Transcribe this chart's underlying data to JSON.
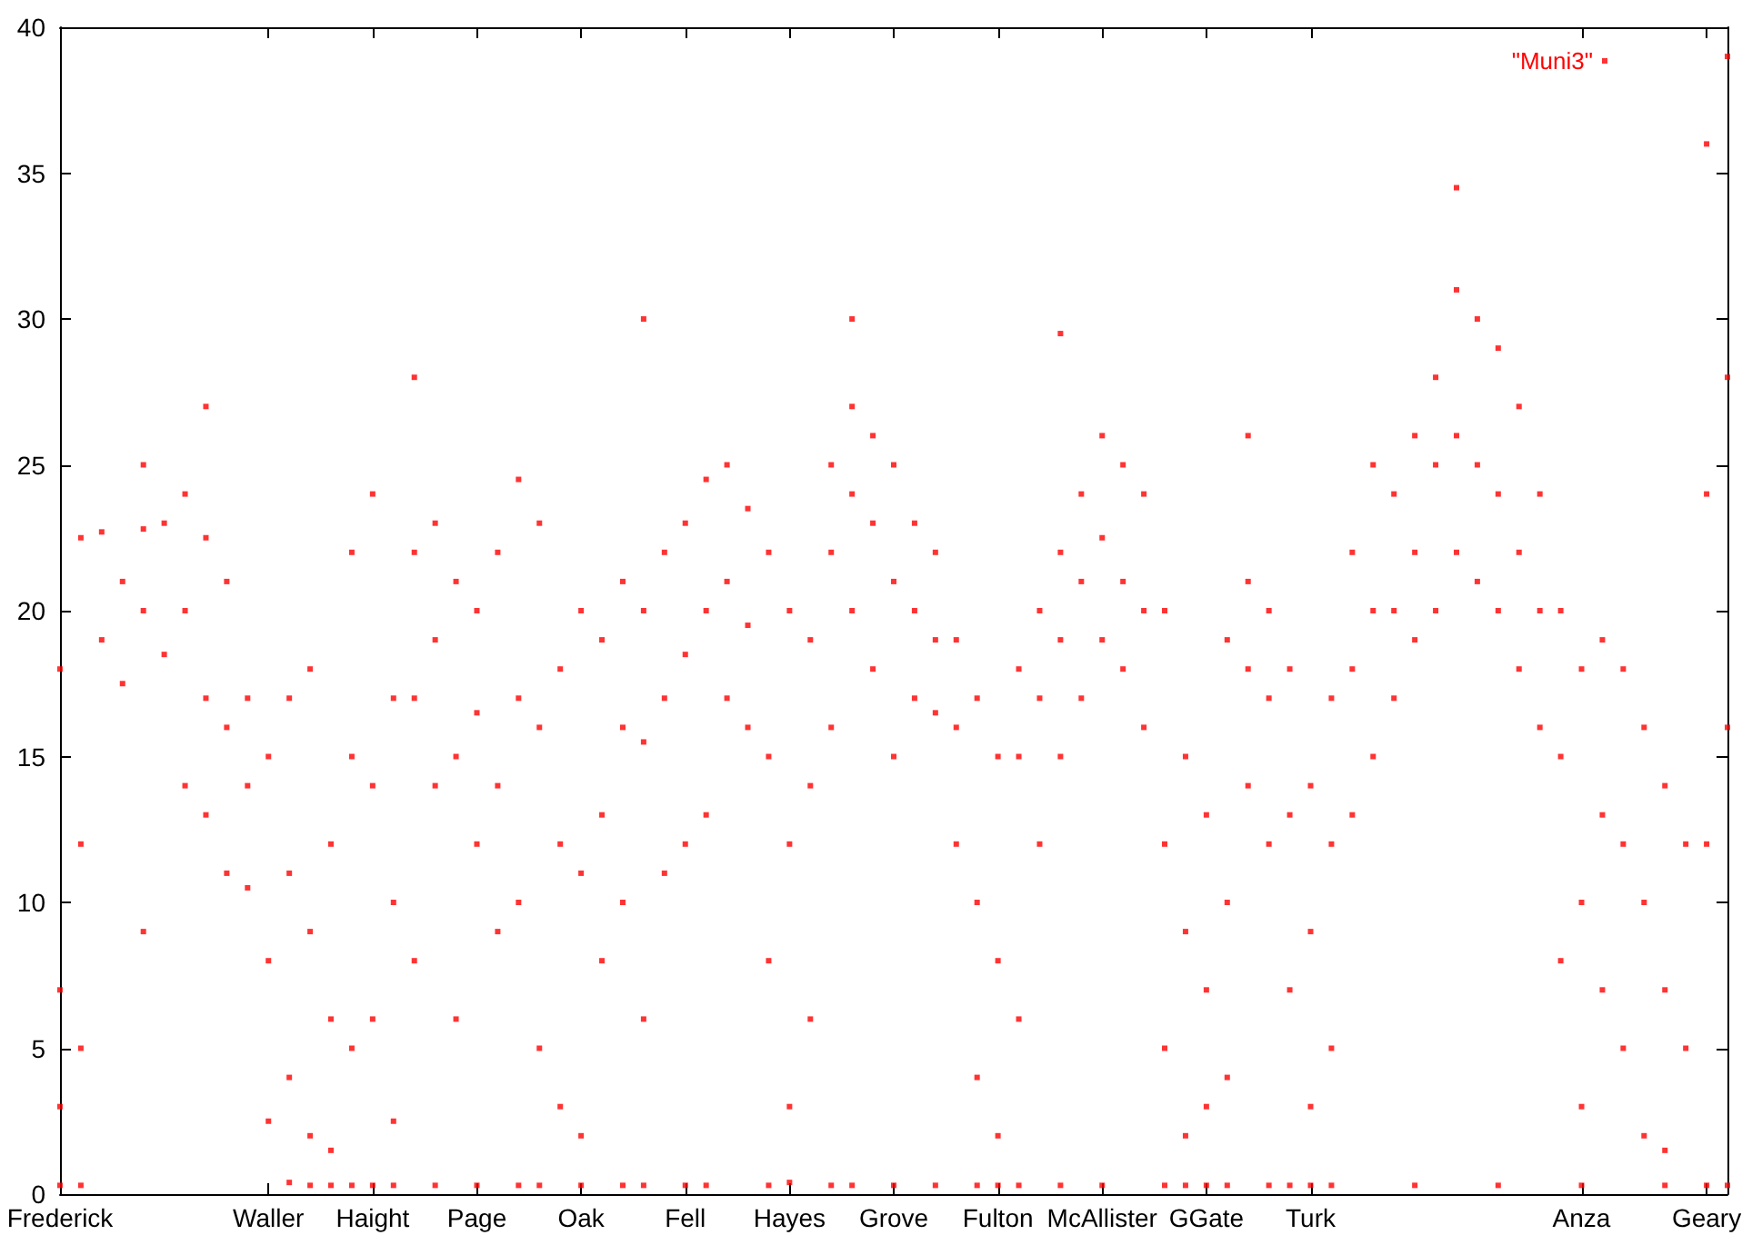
{
  "chart_data": {
    "type": "scatter",
    "marker": "square",
    "legend": "top right",
    "grid": false,
    "categories": [
      "Frederick",
      null,
      null,
      null,
      null,
      null,
      null,
      null,
      null,
      null,
      "Waller",
      null,
      null,
      null,
      null,
      "Haight",
      null,
      null,
      null,
      null,
      "Page",
      null,
      null,
      null,
      null,
      "Oak",
      null,
      null,
      null,
      null,
      "Fell",
      null,
      null,
      null,
      null,
      "Hayes",
      null,
      null,
      null,
      null,
      "Grove",
      null,
      null,
      null,
      null,
      "Fulton",
      null,
      null,
      null,
      null,
      "McAllister",
      null,
      null,
      null,
      null,
      "GGate",
      null,
      null,
      null,
      null,
      "Turk",
      null,
      null,
      null,
      null,
      null,
      null,
      null,
      null,
      null,
      null,
      null,
      null,
      "Anza",
      null,
      null,
      null,
      null,
      null,
      "Geary",
      null
    ],
    "ylim": [
      0,
      40
    ],
    "yticks": [
      0,
      5,
      10,
      15,
      20,
      25,
      30,
      35,
      40
    ],
    "series": [
      {
        "name": "\"Muni3\"",
        "color": "#ff0000",
        "values": [
          18,
          22.5,
          22.7,
          21,
          22.8,
          23,
          24,
          22.5,
          21,
          17,
          15,
          17,
          18,
          12,
          22,
          24,
          17,
          22,
          23,
          21,
          20,
          22,
          24.5,
          23,
          18,
          20,
          19,
          21,
          20,
          22,
          23,
          24.5,
          25,
          23.5,
          22,
          20,
          19,
          25,
          27,
          26,
          25,
          23,
          22,
          19,
          17,
          15,
          18,
          20,
          22,
          24,
          26,
          25,
          24,
          20,
          15,
          13,
          19,
          21,
          20,
          18,
          14,
          17,
          22,
          25,
          24,
          26,
          28,
          31,
          30,
          29,
          27,
          24,
          20,
          18,
          19,
          18,
          16,
          14,
          12,
          36,
          39
        ]
      },
      {
        "color": "#ff0000",
        "values": [
          7,
          12,
          19,
          17.5,
          20,
          18.5,
          20,
          17,
          16,
          14,
          8,
          11,
          9,
          6,
          15,
          14,
          10,
          17,
          19,
          15,
          16.5,
          14,
          17,
          16,
          12,
          11,
          13,
          16,
          15.5,
          17,
          18.5,
          20,
          21,
          19.5,
          15,
          12,
          14,
          22,
          24,
          23,
          21,
          20,
          19,
          16,
          10,
          8,
          15,
          17,
          19,
          21,
          22.5,
          21,
          20,
          12,
          9,
          7,
          10,
          18,
          17,
          13,
          9,
          12,
          18,
          20,
          20,
          22,
          25,
          26,
          25,
          24,
          22,
          20,
          15,
          10,
          13,
          12,
          10,
          7,
          5,
          24,
          28
        ]
      },
      {
        "color": "#ff0000",
        "values": [
          3,
          5,
          null,
          null,
          9,
          null,
          14,
          13,
          11,
          10.5,
          2.5,
          4,
          2,
          1.5,
          5,
          6,
          2.5,
          8,
          14,
          6,
          12,
          9,
          10,
          5,
          3,
          2,
          8,
          10,
          6,
          11,
          12,
          13,
          17,
          16,
          8,
          3,
          6,
          16,
          20,
          18,
          15,
          17,
          16.5,
          12,
          4,
          2,
          6,
          12,
          15,
          17,
          19,
          18,
          16,
          5,
          2,
          3,
          4,
          14,
          12,
          7,
          3,
          5,
          13,
          15,
          17,
          19,
          20,
          22,
          21,
          20,
          18,
          16,
          8,
          3,
          7,
          5,
          2,
          1.5,
          null,
          12,
          16
        ]
      },
      {
        "color": "#ff0000",
        "values": [
          0.3,
          0.3,
          null,
          null,
          null,
          null,
          null,
          null,
          null,
          null,
          null,
          0.4,
          0.3,
          0.3,
          0.3,
          0.3,
          0.3,
          null,
          0.3,
          null,
          0.3,
          null,
          0.3,
          0.3,
          null,
          0.3,
          null,
          0.3,
          0.3,
          null,
          0.3,
          0.3,
          null,
          null,
          0.3,
          0.4,
          null,
          0.3,
          0.3,
          null,
          0.3,
          null,
          0.3,
          null,
          0.3,
          0.3,
          0.3,
          null,
          0.3,
          null,
          0.3,
          null,
          null,
          0.3,
          0.3,
          0.3,
          0.3,
          null,
          0.3,
          0.3,
          0.3,
          0.3,
          null,
          null,
          null,
          0.3,
          null,
          null,
          null,
          0.3,
          null,
          null,
          null,
          0.3,
          null,
          null,
          null,
          0.3,
          null,
          0.3,
          0.3
        ]
      },
      {
        "color": "#ff0000",
        "values": [
          null,
          null,
          null,
          null,
          25,
          null,
          null,
          27,
          null,
          null,
          null,
          null,
          null,
          null,
          null,
          null,
          null,
          28,
          null,
          null,
          null,
          null,
          null,
          null,
          null,
          null,
          null,
          null,
          30,
          null,
          null,
          null,
          null,
          null,
          null,
          null,
          null,
          null,
          30,
          null,
          null,
          null,
          null,
          null,
          null,
          null,
          null,
          null,
          29.5,
          null,
          null,
          null,
          null,
          null,
          null,
          null,
          null,
          26,
          null,
          null,
          null,
          null,
          null,
          null,
          null,
          null,
          null,
          34.5,
          null,
          null,
          null,
          null,
          null,
          null,
          null,
          null,
          null,
          null,
          null,
          null,
          null
        ]
      }
    ]
  }
}
